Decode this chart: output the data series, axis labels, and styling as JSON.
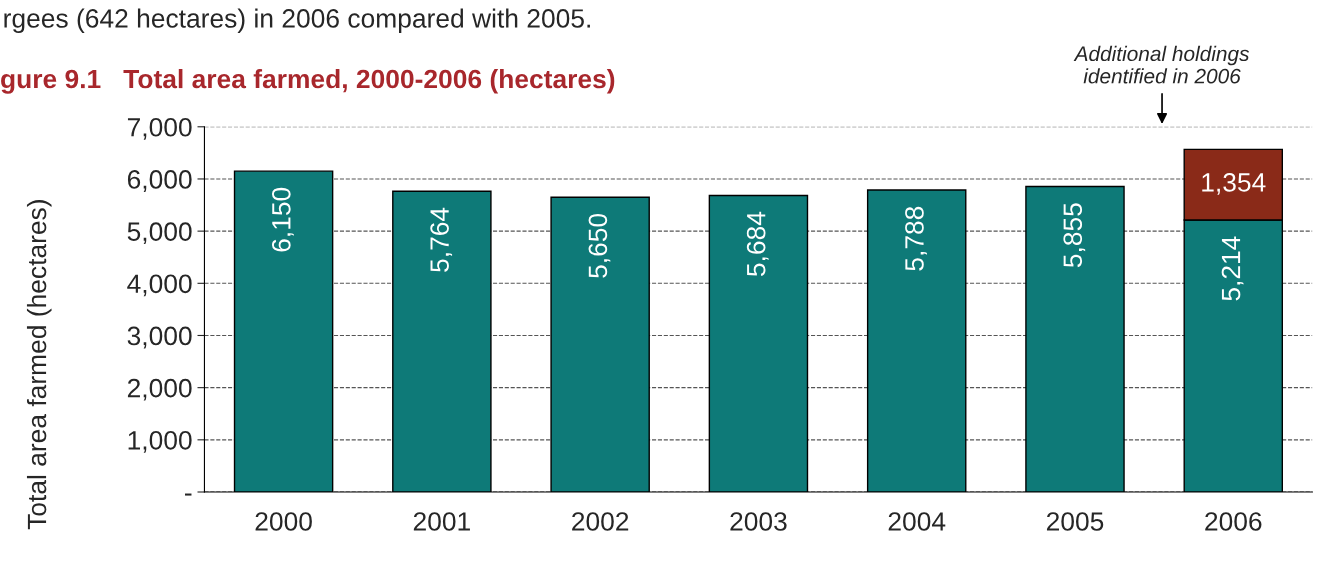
{
  "chart_data": {
    "type": "bar",
    "stacked": true,
    "title": "gure 9.1   Total area farmed, 2000-2006 (hectares)",
    "ylabel": "Total area farmed (hectares)",
    "annotations": [
      "rgees (642 hectares) in 2006 compared with 2005.",
      "Additional holdings\nidentified in 2006"
    ],
    "categories": [
      "2000",
      "2001",
      "2002",
      "2003",
      "2004",
      "2005",
      "2006"
    ],
    "series": [
      {
        "color": "#0e7a78",
        "values": [
          6150,
          5764,
          5650,
          5684,
          5788,
          5855,
          5214
        ],
        "value_labels": [
          "6,150",
          "5,764",
          "5,650",
          "5,684",
          "5,788",
          "5,855",
          "5,214"
        ]
      },
      {
        "color": "#8a2a18",
        "values": [
          null,
          null,
          null,
          null,
          null,
          null,
          1354
        ],
        "value_labels": [
          null,
          null,
          null,
          null,
          null,
          null,
          "1,354"
        ]
      }
    ],
    "ylim": [
      0,
      7000
    ],
    "yticks": [
      {
        "value": 0,
        "label": "-"
      },
      {
        "value": 1000,
        "label": "1,000"
      },
      {
        "value": 2000,
        "label": "2,000"
      },
      {
        "value": 3000,
        "label": "3,000"
      },
      {
        "value": 4000,
        "label": "4,000"
      },
      {
        "value": 5000,
        "label": "5,000"
      },
      {
        "value": 6000,
        "label": "6,000"
      },
      {
        "value": 7000,
        "label": "7,000"
      }
    ],
    "grid": "y",
    "line_style": "dashed",
    "legend": false
  }
}
